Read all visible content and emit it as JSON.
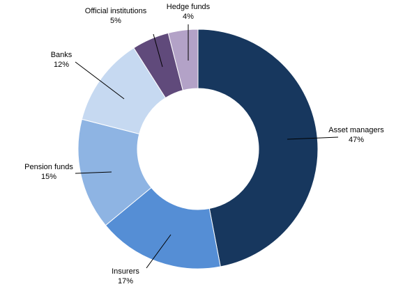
{
  "chart_data": {
    "type": "pie",
    "donut": true,
    "title": "",
    "legend": "none",
    "slices": [
      {
        "name": "Asset managers",
        "value": 47,
        "label": "47%",
        "color": "#17375e"
      },
      {
        "name": "Insurers",
        "value": 17,
        "label": "17%",
        "color": "#558ed5"
      },
      {
        "name": "Pension funds",
        "value": 15,
        "label": "15%",
        "color": "#8eb4e3"
      },
      {
        "name": "Banks",
        "value": 12,
        "label": "12%",
        "color": "#c6d9f1"
      },
      {
        "name": "Official institutions",
        "value": 5,
        "label": "5%",
        "color": "#604a7b"
      },
      {
        "name": "Hedge funds",
        "value": 4,
        "label": "4%",
        "color": "#b3a2c7"
      }
    ]
  }
}
